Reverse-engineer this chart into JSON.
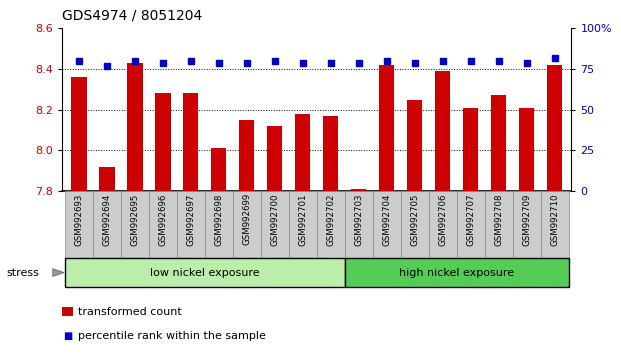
{
  "title": "GDS4974 / 8051204",
  "samples": [
    "GSM992693",
    "GSM992694",
    "GSM992695",
    "GSM992696",
    "GSM992697",
    "GSM992698",
    "GSM992699",
    "GSM992700",
    "GSM992701",
    "GSM992702",
    "GSM992703",
    "GSM992704",
    "GSM992705",
    "GSM992706",
    "GSM992707",
    "GSM992708",
    "GSM992709",
    "GSM992710"
  ],
  "bar_values": [
    8.36,
    7.92,
    8.43,
    8.28,
    8.28,
    8.01,
    8.15,
    8.12,
    8.18,
    8.17,
    7.81,
    8.42,
    8.25,
    8.39,
    8.21,
    8.27,
    8.21,
    8.42
  ],
  "percentile_values": [
    80,
    77,
    80,
    79,
    80,
    79,
    79,
    80,
    79,
    79,
    79,
    80,
    79,
    80,
    80,
    80,
    79,
    82
  ],
  "ylim_left": [
    7.8,
    8.6
  ],
  "ylim_right": [
    0,
    100
  ],
  "bar_color": "#cc0000",
  "dot_color": "#0000cc",
  "label_bar": "transformed count",
  "label_dot": "percentile rank within the sample",
  "group1_label": "low nickel exposure",
  "group2_label": "high nickel exposure",
  "group1_color": "#bbeeaa",
  "group2_color": "#55cc55",
  "group1_count": 10,
  "stress_label": "stress",
  "yticks_left": [
    7.8,
    8.0,
    8.2,
    8.4,
    8.6
  ],
  "yticks_right": [
    0,
    25,
    50,
    75,
    100
  ],
  "dotted_lines": [
    8.0,
    8.2,
    8.4
  ],
  "sample_box_color": "#cccccc",
  "sample_box_edge": "#888888"
}
